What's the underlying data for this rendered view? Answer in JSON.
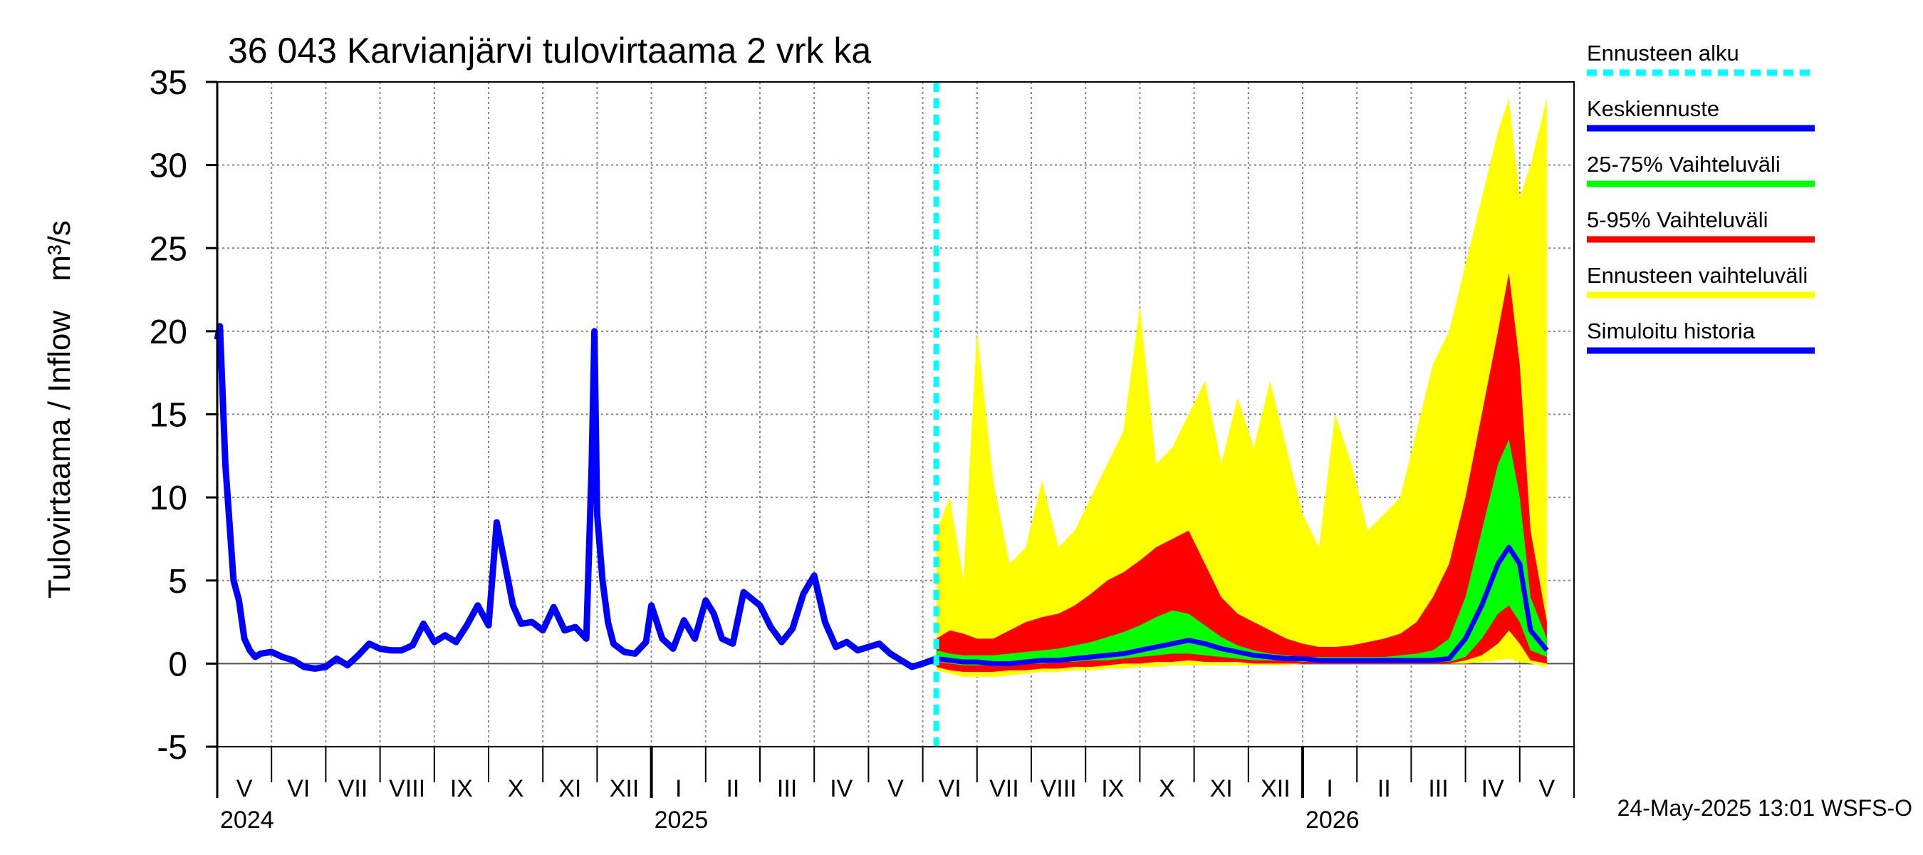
{
  "chart_data": {
    "type": "area",
    "title": "36 043 Karvianjärvi tulovirtaama 2 vrk ka",
    "ylabel_parts": [
      "Tulovirtaama / Inflow",
      "m³/s"
    ],
    "ylim": [
      -5,
      35
    ],
    "yticks": [
      -5,
      0,
      5,
      10,
      15,
      20,
      25,
      30,
      35
    ],
    "grid": true,
    "legend_placement": "right",
    "months": [
      "V",
      "VI",
      "VII",
      "VIII",
      "IX",
      "X",
      "XI",
      "XII",
      "I",
      "II",
      "III",
      "IV",
      "V",
      "VI",
      "VII",
      "VIII",
      "IX",
      "X",
      "XI",
      "XII",
      "I",
      "II",
      "III",
      "IV",
      "V"
    ],
    "years": [
      {
        "label": "2024",
        "month_index": 0
      },
      {
        "label": "2025",
        "month_index": 8
      },
      {
        "label": "2026",
        "month_index": 20
      }
    ],
    "forecast_start_month": 13.25,
    "history": {
      "name": "Simuloitu historia",
      "x": [
        0,
        0.05,
        0.15,
        0.3,
        0.4,
        0.5,
        0.6,
        0.7,
        0.8,
        1.0,
        1.2,
        1.4,
        1.6,
        1.8,
        2.0,
        2.2,
        2.4,
        2.6,
        2.8,
        3.0,
        3.2,
        3.4,
        3.6,
        3.8,
        4.0,
        4.2,
        4.4,
        4.6,
        4.8,
        5.0,
        5.15,
        5.3,
        5.45,
        5.6,
        5.8,
        6.0,
        6.2,
        6.4,
        6.6,
        6.8,
        6.9,
        6.95,
        7.0,
        7.1,
        7.2,
        7.3,
        7.5,
        7.7,
        7.9,
        8.0,
        8.1,
        8.2,
        8.4,
        8.6,
        8.8,
        9.0,
        9.15,
        9.3,
        9.5,
        9.7,
        10.0,
        10.2,
        10.4,
        10.6,
        10.8,
        11.0,
        11.2,
        11.4,
        11.6,
        11.8,
        12.0,
        12.2,
        12.4,
        12.6,
        12.8,
        13.0,
        13.25
      ],
      "y": [
        19.5,
        20.3,
        12.0,
        5.0,
        3.8,
        1.5,
        0.8,
        0.4,
        0.6,
        0.7,
        0.4,
        0.2,
        -0.2,
        -0.3,
        -0.2,
        0.3,
        -0.1,
        0.5,
        1.2,
        0.9,
        0.8,
        0.8,
        1.1,
        2.4,
        1.3,
        1.7,
        1.3,
        2.3,
        3.5,
        2.3,
        8.5,
        6.0,
        3.5,
        2.4,
        2.5,
        2.0,
        3.4,
        2.0,
        2.2,
        1.5,
        12.0,
        20.0,
        9.0,
        5.0,
        2.5,
        1.2,
        0.7,
        0.6,
        1.3,
        3.5,
        2.5,
        1.5,
        0.9,
        2.6,
        1.5,
        3.8,
        3.0,
        1.5,
        1.2,
        4.3,
        3.5,
        2.2,
        1.3,
        2.1,
        4.2,
        5.3,
        2.5,
        1.0,
        1.3,
        0.8,
        1.0,
        1.2,
        0.6,
        0.2,
        -0.2,
        0.0,
        0.3
      ]
    },
    "forecast": {
      "x": [
        13.25,
        13.5,
        13.75,
        14.0,
        14.3,
        14.6,
        14.9,
        15.2,
        15.5,
        15.8,
        16.1,
        16.4,
        16.7,
        17.0,
        17.3,
        17.6,
        17.9,
        18.2,
        18.5,
        18.8,
        19.1,
        19.4,
        19.7,
        20.0,
        20.3,
        20.6,
        20.9,
        21.2,
        21.5,
        21.8,
        22.1,
        22.4,
        22.7,
        23.0,
        23.3,
        23.6,
        23.8,
        24.0,
        24.2,
        24.5
      ],
      "median": [
        0.3,
        0.2,
        0.1,
        0.1,
        0.0,
        0.0,
        0.1,
        0.2,
        0.2,
        0.3,
        0.4,
        0.5,
        0.6,
        0.8,
        1.0,
        1.2,
        1.4,
        1.2,
        0.9,
        0.7,
        0.5,
        0.4,
        0.3,
        0.3,
        0.2,
        0.2,
        0.2,
        0.2,
        0.2,
        0.2,
        0.2,
        0.2,
        0.3,
        1.5,
        3.5,
        6.0,
        7.0,
        6.0,
        2.0,
        0.8
      ],
      "p25": [
        0.1,
        0.0,
        -0.1,
        -0.1,
        -0.1,
        -0.1,
        0.0,
        0.0,
        0.1,
        0.1,
        0.2,
        0.2,
        0.3,
        0.4,
        0.5,
        0.6,
        0.6,
        0.5,
        0.4,
        0.3,
        0.2,
        0.2,
        0.2,
        0.1,
        0.1,
        0.1,
        0.1,
        0.1,
        0.1,
        0.1,
        0.1,
        0.1,
        0.1,
        0.4,
        1.5,
        3.0,
        3.5,
        2.5,
        0.8,
        0.4
      ],
      "p75": [
        0.8,
        0.6,
        0.5,
        0.5,
        0.5,
        0.6,
        0.7,
        0.8,
        0.9,
        1.1,
        1.3,
        1.6,
        1.9,
        2.3,
        2.8,
        3.2,
        3.0,
        2.3,
        1.6,
        1.1,
        0.8,
        0.6,
        0.5,
        0.4,
        0.4,
        0.4,
        0.4,
        0.4,
        0.4,
        0.5,
        0.6,
        0.8,
        1.5,
        4.0,
        8.0,
        12.0,
        13.5,
        10.0,
        4.0,
        1.5
      ],
      "p5": [
        -0.2,
        -0.4,
        -0.5,
        -0.5,
        -0.5,
        -0.4,
        -0.4,
        -0.3,
        -0.3,
        -0.2,
        -0.2,
        -0.1,
        0.0,
        0.0,
        0.1,
        0.1,
        0.2,
        0.1,
        0.1,
        0.1,
        0.0,
        0.0,
        0.0,
        0.0,
        0.0,
        0.0,
        0.0,
        0.0,
        0.0,
        0.0,
        0.0,
        0.0,
        0.0,
        0.2,
        0.5,
        1.2,
        2.0,
        1.2,
        0.2,
        0.0
      ],
      "p95": [
        1.5,
        2.0,
        1.8,
        1.5,
        1.5,
        2.0,
        2.5,
        2.8,
        3.0,
        3.5,
        4.2,
        5.0,
        5.5,
        6.2,
        7.0,
        7.5,
        8.0,
        6.0,
        4.0,
        3.0,
        2.5,
        2.0,
        1.5,
        1.2,
        1.0,
        1.0,
        1.1,
        1.3,
        1.5,
        1.8,
        2.5,
        4.0,
        6.0,
        10.0,
        15.0,
        20.0,
        23.5,
        18.0,
        8.0,
        2.5
      ],
      "min": [
        -0.4,
        -0.6,
        -0.8,
        -0.8,
        -0.8,
        -0.7,
        -0.6,
        -0.5,
        -0.5,
        -0.4,
        -0.4,
        -0.3,
        -0.3,
        -0.2,
        -0.2,
        -0.1,
        -0.1,
        -0.1,
        -0.1,
        -0.1,
        -0.1,
        -0.1,
        -0.1,
        0.0,
        0.0,
        0.0,
        0.0,
        0.0,
        0.0,
        0.0,
        0.0,
        0.0,
        0.0,
        0.0,
        0.1,
        0.2,
        0.3,
        0.1,
        0.0,
        -0.2
      ],
      "max": [
        8.0,
        10.0,
        5.0,
        20.0,
        11.0,
        6.0,
        7.0,
        11.0,
        7.0,
        8.0,
        10.0,
        12.0,
        14.0,
        21.5,
        12.0,
        13.0,
        15.0,
        17.0,
        12.0,
        16.0,
        13.0,
        17.0,
        13.0,
        9.0,
        7.0,
        15.0,
        12.0,
        8.0,
        9.0,
        10.0,
        14.0,
        18.0,
        20.0,
        24.0,
        28.0,
        32.0,
        34.0,
        28.0,
        30.0,
        34.0
      ]
    },
    "colors": {
      "history": "#0000ff",
      "median": "#0000ff",
      "p25_75": "#00ff00",
      "p5_95": "#ff0000",
      "full_range": "#ffff00",
      "forecast_start": "#00ffff",
      "grid": "#888888"
    },
    "legend": [
      {
        "label": "Ennusteen alku",
        "color": "#00ffff",
        "style": "dashed"
      },
      {
        "label": "Keskiennuste",
        "color": "#0000ff",
        "style": "solid"
      },
      {
        "label": "25-75% Vaihteluväli",
        "color": "#00ff00",
        "style": "solid"
      },
      {
        "label": "5-95% Vaihteluväli",
        "color": "#ff0000",
        "style": "solid"
      },
      {
        "label": "Ennusteen vaihteluväli",
        "color": "#ffff00",
        "style": "solid"
      },
      {
        "label": "Simuloitu historia",
        "color": "#0000ff",
        "style": "solid"
      }
    ]
  },
  "footer": "24-May-2025 13:01 WSFS-O"
}
